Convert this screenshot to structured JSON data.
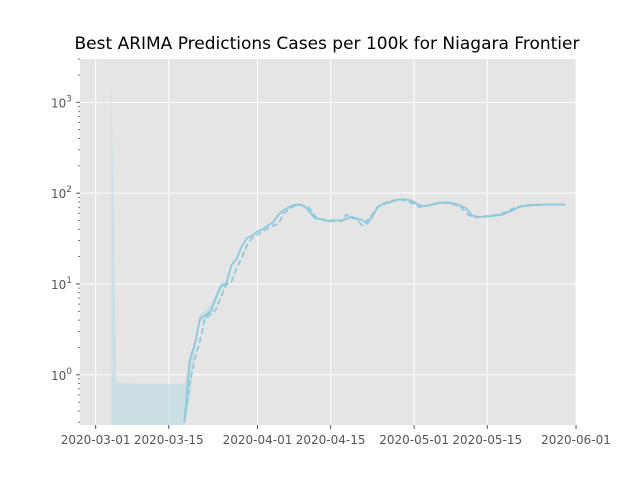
{
  "chart_data": {
    "type": "line",
    "title": "Best ARIMA Predictions Cases per 100k for Niagara Frontier",
    "xlabel": "",
    "ylabel": "",
    "yscale": "log",
    "ylim": [
      0.28,
      3000
    ],
    "xlim": [
      "2020-02-27",
      "2020-06-01"
    ],
    "grid": true,
    "background": "#E5E5E5",
    "line_color": "#8EC8DD",
    "band_color": "#C8DEE4",
    "x_ticks": [
      "2020-03-01",
      "2020-03-15",
      "2020-04-01",
      "2020-04-15",
      "2020-05-01",
      "2020-05-15",
      "2020-06-01"
    ],
    "y_ticks": [
      {
        "base": "10",
        "exp": "0",
        "value": 1
      },
      {
        "base": "10",
        "exp": "1",
        "value": 10
      },
      {
        "base": "10",
        "exp": "2",
        "value": 100
      },
      {
        "base": "10",
        "exp": "3",
        "value": 1000
      }
    ],
    "series": [
      {
        "style": "solid",
        "x": [
          "2020-03-18",
          "2020-03-19",
          "2020-03-20",
          "2020-03-21",
          "2020-03-22",
          "2020-03-23",
          "2020-03-24",
          "2020-03-25",
          "2020-03-26",
          "2020-03-27",
          "2020-03-28",
          "2020-03-29",
          "2020-03-30",
          "2020-03-31",
          "2020-04-01",
          "2020-04-02",
          "2020-04-03",
          "2020-04-04",
          "2020-04-05",
          "2020-04-06",
          "2020-04-07",
          "2020-04-08",
          "2020-04-09",
          "2020-04-10",
          "2020-04-11",
          "2020-04-12",
          "2020-04-13",
          "2020-04-14",
          "2020-04-15",
          "2020-04-16",
          "2020-04-17",
          "2020-04-18",
          "2020-04-19",
          "2020-04-20",
          "2020-04-21",
          "2020-04-22",
          "2020-04-23",
          "2020-04-24",
          "2020-04-25",
          "2020-04-26",
          "2020-04-27",
          "2020-04-28",
          "2020-04-29",
          "2020-04-30",
          "2020-05-01",
          "2020-05-02",
          "2020-05-03",
          "2020-05-04",
          "2020-05-05",
          "2020-05-06",
          "2020-05-07",
          "2020-05-08",
          "2020-05-09",
          "2020-05-10",
          "2020-05-11",
          "2020-05-12",
          "2020-05-13",
          "2020-05-14",
          "2020-05-15",
          "2020-05-16",
          "2020-05-17",
          "2020-05-18",
          "2020-05-19",
          "2020-05-20",
          "2020-05-21",
          "2020-05-22",
          "2020-05-23",
          "2020-05-24",
          "2020-05-25",
          "2020-05-26",
          "2020-05-27",
          "2020-05-28",
          "2020-05-29",
          "2020-05-30"
        ],
        "values": [
          0.3,
          1.4,
          2.2,
          4.2,
          4.5,
          5.0,
          7.0,
          9.5,
          10.0,
          16.0,
          19.0,
          26.0,
          32.0,
          34.0,
          38.0,
          40.0,
          44.0,
          48.0,
          58.0,
          65.0,
          70.0,
          74.0,
          75.0,
          72.0,
          62.0,
          53.0,
          52.0,
          50.0,
          49.0,
          50.0,
          50.0,
          52.0,
          55.0,
          52.0,
          51.0,
          46.0,
          55.0,
          70.0,
          76.0,
          78.0,
          82.0,
          85.0,
          86.0,
          84.0,
          80.0,
          74.0,
          72.0,
          74.0,
          76.0,
          78.0,
          79.0,
          78.0,
          76.0,
          72.0,
          68.0,
          57.0,
          55.0,
          55.0,
          55.0,
          56.0,
          57.0,
          58.0,
          62.0,
          65.0,
          70.0,
          72.0,
          73.0,
          74.0,
          74.0,
          75.0,
          75.0,
          75.0,
          75.0,
          75.0
        ]
      },
      {
        "style": "dashed",
        "x": [
          "2020-03-18",
          "2020-03-19",
          "2020-03-20",
          "2020-03-21",
          "2020-03-22",
          "2020-03-23",
          "2020-03-24",
          "2020-03-25",
          "2020-03-26",
          "2020-03-27",
          "2020-03-28",
          "2020-03-29",
          "2020-03-30",
          "2020-03-31",
          "2020-04-01",
          "2020-04-02",
          "2020-04-03",
          "2020-04-04",
          "2020-04-05",
          "2020-04-06",
          "2020-04-07",
          "2020-04-08",
          "2020-04-09",
          "2020-04-10",
          "2020-04-11",
          "2020-04-12",
          "2020-04-13",
          "2020-04-14",
          "2020-04-15",
          "2020-04-16",
          "2020-04-17",
          "2020-04-18",
          "2020-04-19",
          "2020-04-20",
          "2020-04-21",
          "2020-04-22",
          "2020-04-23",
          "2020-04-24",
          "2020-04-25",
          "2020-04-26",
          "2020-04-27",
          "2020-04-28",
          "2020-04-29",
          "2020-04-30",
          "2020-05-01",
          "2020-05-02",
          "2020-05-03",
          "2020-05-04",
          "2020-05-05",
          "2020-05-06",
          "2020-05-07",
          "2020-05-08",
          "2020-05-09",
          "2020-05-10",
          "2020-05-11",
          "2020-05-12",
          "2020-05-13",
          "2020-05-14",
          "2020-05-15",
          "2020-05-16",
          "2020-05-17",
          "2020-05-18",
          "2020-05-19",
          "2020-05-20",
          "2020-05-21",
          "2020-05-22",
          "2020-05-23",
          "2020-05-24",
          "2020-05-25",
          "2020-05-26",
          "2020-05-27",
          "2020-05-28",
          "2020-05-29",
          "2020-05-30"
        ],
        "values": [
          0.3,
          0.8,
          1.5,
          2.4,
          4.3,
          4.6,
          5.2,
          7.2,
          9.8,
          10.5,
          15.0,
          19.5,
          27.0,
          32.0,
          35.0,
          38.0,
          41.0,
          44.0,
          46.0,
          60.0,
          66.0,
          72.0,
          74.0,
          72.0,
          68.0,
          55.0,
          52.0,
          51.0,
          50.0,
          51.0,
          49.0,
          58.0,
          53.0,
          53.0,
          44.0,
          50.0,
          58.0,
          70.0,
          76.0,
          80.0,
          83.0,
          86.0,
          84.0,
          80.0,
          76.0,
          70.0,
          72.0,
          74.0,
          77.0,
          79.0,
          78.0,
          77.0,
          74.0,
          70.0,
          60.0,
          55.0,
          54.0,
          55.0,
          56.0,
          57.0,
          58.0,
          60.0,
          64.0,
          68.0,
          71.0,
          73.0,
          74.0,
          74.0,
          75.0,
          75.0,
          75.0,
          75.0,
          75.0,
          75.0
        ]
      }
    ],
    "band": {
      "x": [
        "2020-03-04",
        "2020-03-04",
        "2020-03-05",
        "2020-03-06",
        "2020-03-07",
        "2020-03-08",
        "2020-03-10",
        "2020-03-12",
        "2020-03-14",
        "2020-03-16",
        "2020-03-17",
        "2020-03-18",
        "2020-03-19",
        "2020-03-20",
        "2020-03-21",
        "2020-03-22",
        "2020-03-23",
        "2020-03-24",
        "2020-03-25",
        "2020-03-26"
      ],
      "upper": [
        1900,
        1900,
        0.85,
        0.82,
        0.82,
        0.8,
        0.8,
        0.8,
        0.8,
        0.8,
        0.8,
        0.8,
        1.6,
        2.4,
        4.6,
        5.2,
        5.8,
        7.8,
        10.5,
        11.0
      ],
      "lower": [
        0.28,
        0.28,
        0.28,
        0.28,
        0.28,
        0.28,
        0.28,
        0.28,
        0.28,
        0.28,
        0.28,
        0.28,
        0.5,
        1.8,
        3.8,
        4.0,
        4.4,
        6.2,
        8.6,
        9.0
      ]
    }
  }
}
